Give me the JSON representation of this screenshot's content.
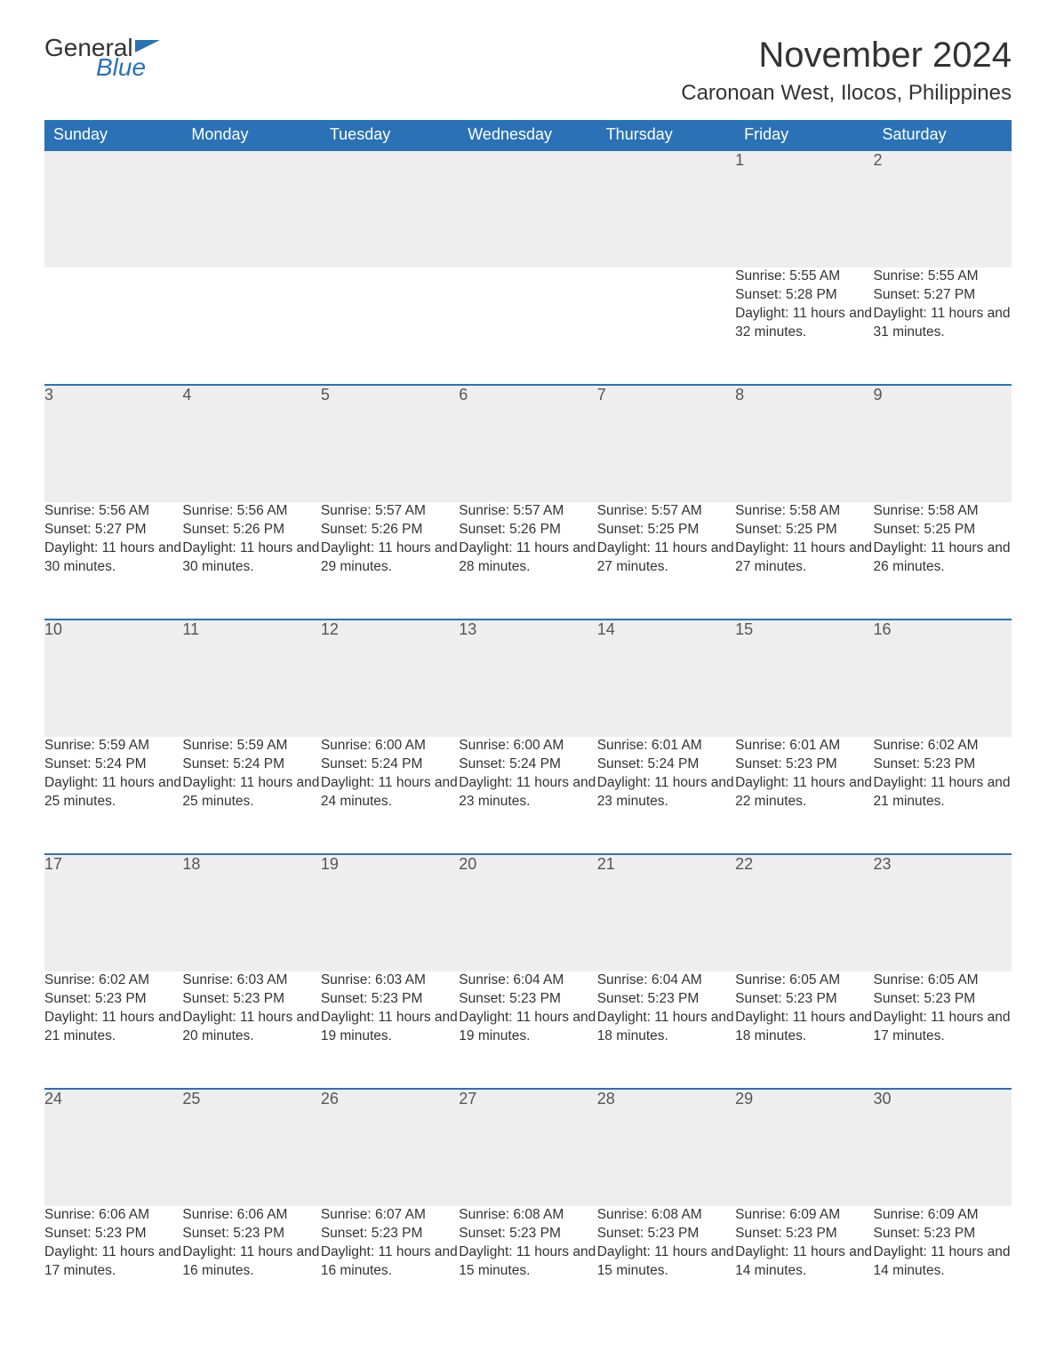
{
  "logo": {
    "part1": "General",
    "part2": "Blue"
  },
  "title": "November 2024",
  "location": "Caronoan West, Ilocos, Philippines",
  "colors": {
    "header_bg": "#2a72b5",
    "header_text": "#ffffff",
    "row_divider": "#2a72b5",
    "daynum_bg": "#eeeeee",
    "body_text": "#333333",
    "page_bg": "#ffffff"
  },
  "columns": [
    "Sunday",
    "Monday",
    "Tuesday",
    "Wednesday",
    "Thursday",
    "Friday",
    "Saturday"
  ],
  "weeks": [
    [
      null,
      null,
      null,
      null,
      null,
      {
        "n": "1",
        "sunrise": "5:55 AM",
        "sunset": "5:28 PM",
        "daylight": "11 hours and 32 minutes."
      },
      {
        "n": "2",
        "sunrise": "5:55 AM",
        "sunset": "5:27 PM",
        "daylight": "11 hours and 31 minutes."
      }
    ],
    [
      {
        "n": "3",
        "sunrise": "5:56 AM",
        "sunset": "5:27 PM",
        "daylight": "11 hours and 30 minutes."
      },
      {
        "n": "4",
        "sunrise": "5:56 AM",
        "sunset": "5:26 PM",
        "daylight": "11 hours and 30 minutes."
      },
      {
        "n": "5",
        "sunrise": "5:57 AM",
        "sunset": "5:26 PM",
        "daylight": "11 hours and 29 minutes."
      },
      {
        "n": "6",
        "sunrise": "5:57 AM",
        "sunset": "5:26 PM",
        "daylight": "11 hours and 28 minutes."
      },
      {
        "n": "7",
        "sunrise": "5:57 AM",
        "sunset": "5:25 PM",
        "daylight": "11 hours and 27 minutes."
      },
      {
        "n": "8",
        "sunrise": "5:58 AM",
        "sunset": "5:25 PM",
        "daylight": "11 hours and 27 minutes."
      },
      {
        "n": "9",
        "sunrise": "5:58 AM",
        "sunset": "5:25 PM",
        "daylight": "11 hours and 26 minutes."
      }
    ],
    [
      {
        "n": "10",
        "sunrise": "5:59 AM",
        "sunset": "5:24 PM",
        "daylight": "11 hours and 25 minutes."
      },
      {
        "n": "11",
        "sunrise": "5:59 AM",
        "sunset": "5:24 PM",
        "daylight": "11 hours and 25 minutes."
      },
      {
        "n": "12",
        "sunrise": "6:00 AM",
        "sunset": "5:24 PM",
        "daylight": "11 hours and 24 minutes."
      },
      {
        "n": "13",
        "sunrise": "6:00 AM",
        "sunset": "5:24 PM",
        "daylight": "11 hours and 23 minutes."
      },
      {
        "n": "14",
        "sunrise": "6:01 AM",
        "sunset": "5:24 PM",
        "daylight": "11 hours and 23 minutes."
      },
      {
        "n": "15",
        "sunrise": "6:01 AM",
        "sunset": "5:23 PM",
        "daylight": "11 hours and 22 minutes."
      },
      {
        "n": "16",
        "sunrise": "6:02 AM",
        "sunset": "5:23 PM",
        "daylight": "11 hours and 21 minutes."
      }
    ],
    [
      {
        "n": "17",
        "sunrise": "6:02 AM",
        "sunset": "5:23 PM",
        "daylight": "11 hours and 21 minutes."
      },
      {
        "n": "18",
        "sunrise": "6:03 AM",
        "sunset": "5:23 PM",
        "daylight": "11 hours and 20 minutes."
      },
      {
        "n": "19",
        "sunrise": "6:03 AM",
        "sunset": "5:23 PM",
        "daylight": "11 hours and 19 minutes."
      },
      {
        "n": "20",
        "sunrise": "6:04 AM",
        "sunset": "5:23 PM",
        "daylight": "11 hours and 19 minutes."
      },
      {
        "n": "21",
        "sunrise": "6:04 AM",
        "sunset": "5:23 PM",
        "daylight": "11 hours and 18 minutes."
      },
      {
        "n": "22",
        "sunrise": "6:05 AM",
        "sunset": "5:23 PM",
        "daylight": "11 hours and 18 minutes."
      },
      {
        "n": "23",
        "sunrise": "6:05 AM",
        "sunset": "5:23 PM",
        "daylight": "11 hours and 17 minutes."
      }
    ],
    [
      {
        "n": "24",
        "sunrise": "6:06 AM",
        "sunset": "5:23 PM",
        "daylight": "11 hours and 17 minutes."
      },
      {
        "n": "25",
        "sunrise": "6:06 AM",
        "sunset": "5:23 PM",
        "daylight": "11 hours and 16 minutes."
      },
      {
        "n": "26",
        "sunrise": "6:07 AM",
        "sunset": "5:23 PM",
        "daylight": "11 hours and 16 minutes."
      },
      {
        "n": "27",
        "sunrise": "6:08 AM",
        "sunset": "5:23 PM",
        "daylight": "11 hours and 15 minutes."
      },
      {
        "n": "28",
        "sunrise": "6:08 AM",
        "sunset": "5:23 PM",
        "daylight": "11 hours and 15 minutes."
      },
      {
        "n": "29",
        "sunrise": "6:09 AM",
        "sunset": "5:23 PM",
        "daylight": "11 hours and 14 minutes."
      },
      {
        "n": "30",
        "sunrise": "6:09 AM",
        "sunset": "5:23 PM",
        "daylight": "11 hours and 14 minutes."
      }
    ]
  ],
  "labels": {
    "sunrise": "Sunrise: ",
    "sunset": "Sunset: ",
    "daylight": "Daylight: "
  }
}
